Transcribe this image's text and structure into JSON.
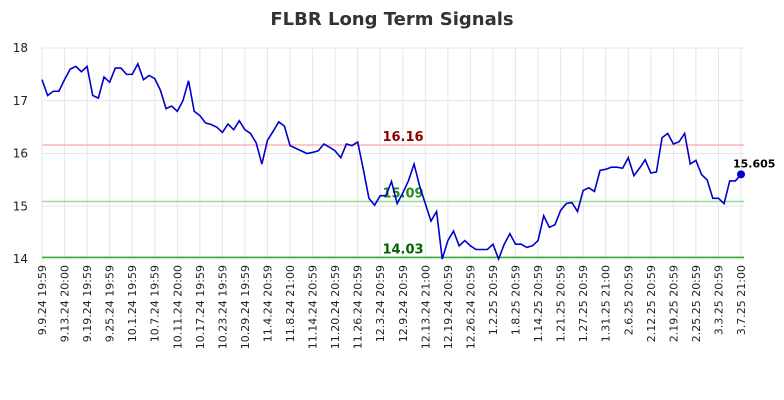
{
  "chart_data": {
    "type": "line",
    "title": "FLBR Long Term Signals",
    "categories": [
      "9.9.24 19:59",
      null,
      null,
      null,
      "9.13.24 20:00",
      null,
      null,
      null,
      "9.19.24 19:59",
      null,
      null,
      null,
      "9.25.24 19:59",
      null,
      null,
      null,
      "10.1.24 19:59",
      null,
      null,
      null,
      "10.7.24 19:59",
      null,
      null,
      null,
      "10.11.24 20:00",
      null,
      null,
      null,
      "10.17.24 19:59",
      null,
      null,
      null,
      "10.23.24 19:59",
      null,
      null,
      null,
      "10.29.24 19:59",
      null,
      null,
      null,
      "11.4.24 20:59",
      null,
      null,
      null,
      "11.8.24 21:00",
      null,
      null,
      null,
      "11.14.24 20:59",
      null,
      null,
      null,
      "11.20.24 20:59",
      null,
      null,
      null,
      "11.26.24 20:59",
      null,
      null,
      null,
      "12.3.24 20:59",
      null,
      null,
      null,
      "12.9.24 20:59",
      null,
      null,
      null,
      "12.13.24 21:00",
      null,
      null,
      null,
      "12.19.24 20:59",
      null,
      null,
      null,
      "12.26.24 20:59",
      null,
      null,
      null,
      "1.2.25 20:59",
      null,
      null,
      null,
      "1.8.25 20:59",
      null,
      null,
      null,
      "1.14.25 20:59",
      null,
      null,
      null,
      "1.21.25 20:59",
      null,
      null,
      null,
      "1.27.25 20:59",
      null,
      null,
      null,
      "1.31.25 21:00",
      null,
      null,
      null,
      "2.6.25 20:59",
      null,
      null,
      null,
      "2.12.25 20:59",
      null,
      null,
      null,
      "2.19.25 20:59",
      null,
      null,
      null,
      "2.25.25 20:59",
      null,
      null,
      null,
      "3.3.25 20:59",
      null,
      null,
      null,
      "3.7.25 21:00"
    ],
    "values": [
      17.4,
      17.1,
      17.18,
      17.18,
      17.4,
      17.6,
      17.65,
      17.55,
      17.65,
      17.1,
      17.05,
      17.45,
      17.35,
      17.62,
      17.62,
      17.5,
      17.5,
      17.7,
      17.4,
      17.48,
      17.42,
      17.2,
      16.85,
      16.9,
      16.8,
      17.0,
      17.38,
      16.8,
      16.72,
      16.58,
      16.55,
      16.5,
      16.4,
      16.56,
      16.45,
      16.62,
      16.45,
      16.38,
      16.2,
      15.8,
      16.25,
      16.42,
      16.6,
      16.52,
      16.15,
      16.1,
      16.05,
      16.0,
      16.02,
      16.05,
      16.18,
      16.12,
      16.05,
      15.92,
      16.18,
      16.15,
      16.22,
      15.7,
      15.15,
      15.02,
      15.2,
      15.2,
      15.47,
      15.05,
      15.25,
      15.48,
      15.8,
      15.38,
      15.05,
      14.72,
      14.9,
      14.0,
      14.35,
      14.53,
      14.25,
      14.35,
      14.25,
      14.18,
      14.18,
      14.18,
      14.28,
      14.0,
      14.28,
      14.48,
      14.28,
      14.28,
      14.22,
      14.25,
      14.35,
      14.82,
      14.6,
      14.65,
      14.92,
      15.05,
      15.07,
      14.9,
      15.3,
      15.35,
      15.28,
      15.68,
      15.7,
      15.74,
      15.74,
      15.72,
      15.92,
      15.58,
      15.72,
      15.88,
      15.63,
      15.65,
      16.3,
      16.38,
      16.18,
      16.22,
      16.38,
      15.8,
      15.87,
      15.6,
      15.5,
      15.15,
      15.15,
      15.05,
      15.48,
      15.48,
      15.605
    ],
    "color": "#0000cc",
    "ylim": [
      14,
      18
    ],
    "yticks": [
      14,
      15,
      16,
      17,
      18
    ],
    "grid": true,
    "hlines": [
      {
        "value": 16.16,
        "color": "#f7b6b6",
        "label_color": "#8b0000"
      },
      {
        "value": 15.09,
        "color": "#90e090",
        "label_color": "#228b22"
      },
      {
        "value": 14.03,
        "color": "#33aa33",
        "label_color": "#006400"
      }
    ]
  }
}
